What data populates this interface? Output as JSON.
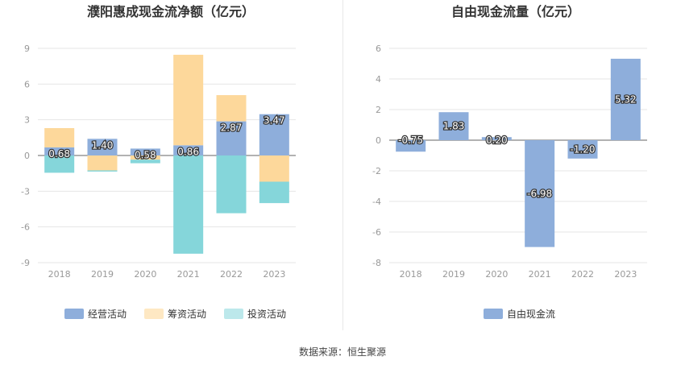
{
  "source": "数据来源：恒生聚源",
  "chart_data": [
    {
      "type": "bar",
      "stacked": true,
      "title": "濮阳惠成现金流净额（亿元）",
      "categories": [
        "2018",
        "2019",
        "2020",
        "2021",
        "2022",
        "2023"
      ],
      "ylim": [
        -9,
        9
      ],
      "yticks": [
        9,
        6,
        3,
        0,
        -3,
        -6,
        -9
      ],
      "grid": true,
      "legend_position": "bottom",
      "series": [
        {
          "name": "经营活动",
          "color": "#8eaedb",
          "values": [
            0.68,
            1.4,
            0.58,
            0.86,
            2.87,
            3.47
          ],
          "labels": [
            "0.68",
            "1.40",
            "0.58",
            "0.86",
            "2.87",
            "3.47"
          ]
        },
        {
          "name": "筹资活动",
          "color": "#fdd89b",
          "values": [
            1.62,
            -1.25,
            -0.35,
            7.6,
            2.2,
            -2.2
          ]
        },
        {
          "name": "投资活动",
          "color": "#85d6da",
          "values": [
            -1.45,
            -0.1,
            -0.3,
            -8.25,
            -4.85,
            -1.8
          ]
        }
      ]
    },
    {
      "type": "bar",
      "title": "自由现金流量（亿元）",
      "categories": [
        "2018",
        "2019",
        "2020",
        "2021",
        "2022",
        "2023"
      ],
      "ylim": [
        -8,
        6
      ],
      "yticks": [
        6,
        4,
        2,
        0,
        -2,
        -4,
        -6,
        -8
      ],
      "grid": true,
      "legend_position": "bottom",
      "series": [
        {
          "name": "自由现金流",
          "color": "#8eaedb",
          "values": [
            -0.75,
            1.83,
            0.2,
            -6.98,
            -1.2,
            5.32
          ],
          "labels": [
            "-0.75",
            "1.83",
            "0.20",
            "-6.98",
            "-1.20",
            "5.32"
          ]
        }
      ]
    }
  ]
}
